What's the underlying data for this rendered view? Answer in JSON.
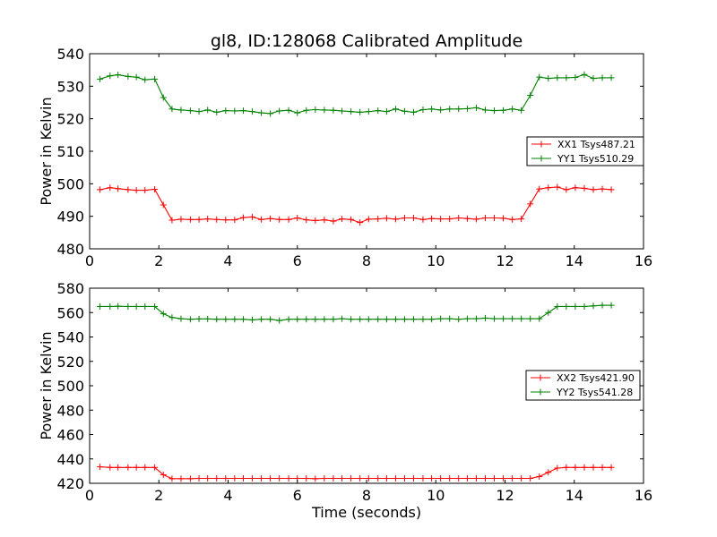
{
  "chart_data": [
    {
      "type": "line",
      "title": "gl8, ID:128068 Calibrated Amplitude",
      "xlabel": "",
      "ylabel": "Power in Kelvin",
      "xlim": [
        0,
        16
      ],
      "ylim": [
        480,
        540
      ],
      "xticks": [
        "0",
        "2",
        "4",
        "6",
        "8",
        "10",
        "12",
        "14",
        "16"
      ],
      "yticks": [
        "480",
        "490",
        "500",
        "510",
        "520",
        "530",
        "540"
      ],
      "grid": false,
      "legend_position": "center-right",
      "x": [
        0.3,
        0.59,
        0.82,
        1.11,
        1.35,
        1.6,
        1.88,
        2.13,
        2.38,
        2.64,
        2.91,
        3.16,
        3.41,
        3.67,
        3.93,
        4.19,
        4.44,
        4.7,
        4.96,
        5.22,
        5.48,
        5.75,
        6.0,
        6.26,
        6.52,
        6.78,
        7.04,
        7.29,
        7.55,
        7.81,
        8.06,
        8.33,
        8.58,
        8.84,
        9.1,
        9.36,
        9.63,
        9.88,
        10.14,
        10.4,
        10.66,
        10.91,
        11.17,
        11.43,
        11.69,
        11.95,
        12.21,
        12.47,
        12.73,
        12.99,
        13.25,
        13.51,
        13.77,
        14.03,
        14.29,
        14.55,
        14.81,
        15.07
      ],
      "series": [
        {
          "name": "XX1 Tsys487.21",
          "color": "#ff0000",
          "values": [
            498.2,
            498.8,
            498.5,
            498.2,
            498.0,
            498.0,
            498.3,
            493.5,
            488.8,
            489.1,
            489.0,
            489.0,
            489.2,
            489.0,
            488.9,
            488.9,
            489.6,
            489.8,
            489.0,
            489.3,
            489.0,
            489.0,
            489.5,
            488.9,
            488.7,
            488.9,
            488.5,
            489.2,
            489.0,
            488.1,
            489.1,
            489.2,
            489.4,
            489.1,
            489.5,
            489.5,
            489.0,
            489.3,
            489.2,
            489.2,
            489.5,
            489.3,
            489.1,
            489.5,
            489.5,
            489.4,
            489.0,
            489.2,
            493.8,
            498.4,
            498.8,
            499.0,
            498.2,
            498.8,
            498.6,
            498.2,
            498.4,
            498.2
          ]
        },
        {
          "name": "YY1 Tsys510.29",
          "color": "#008000",
          "values": [
            532.2,
            533.2,
            533.5,
            533.0,
            532.8,
            532.0,
            532.2,
            526.5,
            523.0,
            522.7,
            522.5,
            522.2,
            522.7,
            522.0,
            522.5,
            522.4,
            522.5,
            522.2,
            521.8,
            521.6,
            522.4,
            522.6,
            521.8,
            522.6,
            522.8,
            522.7,
            522.6,
            522.4,
            522.2,
            522.0,
            522.2,
            522.5,
            522.2,
            523.0,
            522.3,
            522.0,
            522.8,
            523.0,
            522.7,
            523.0,
            523.0,
            523.1,
            523.4,
            522.7,
            522.5,
            522.6,
            523.0,
            522.6,
            527.2,
            532.8,
            532.4,
            532.6,
            532.6,
            532.7,
            533.6,
            532.4,
            532.6,
            532.6
          ]
        }
      ]
    },
    {
      "type": "line",
      "title": "",
      "xlabel": "Time (seconds)",
      "ylabel": "Power in Kelvin",
      "xlim": [
        0,
        16
      ],
      "ylim": [
        420,
        580
      ],
      "xticks": [
        "0",
        "2",
        "4",
        "6",
        "8",
        "10",
        "12",
        "14",
        "16"
      ],
      "yticks": [
        "420",
        "440",
        "460",
        "480",
        "500",
        "520",
        "540",
        "560",
        "580"
      ],
      "grid": false,
      "legend_position": "center-right",
      "x": [
        0.3,
        0.59,
        0.82,
        1.11,
        1.35,
        1.6,
        1.88,
        2.13,
        2.38,
        2.64,
        2.91,
        3.16,
        3.41,
        3.67,
        3.93,
        4.19,
        4.44,
        4.7,
        4.96,
        5.22,
        5.48,
        5.75,
        6.0,
        6.26,
        6.52,
        6.78,
        7.04,
        7.29,
        7.55,
        7.81,
        8.06,
        8.33,
        8.58,
        8.84,
        9.1,
        9.36,
        9.63,
        9.88,
        10.14,
        10.4,
        10.66,
        10.91,
        11.17,
        11.43,
        11.69,
        11.95,
        12.21,
        12.47,
        12.73,
        12.99,
        13.25,
        13.51,
        13.77,
        14.03,
        14.29,
        14.55,
        14.81,
        15.07
      ],
      "series": [
        {
          "name": "XX2 Tsys421.90",
          "color": "#ff0000",
          "values": [
            433.5,
            433.0,
            433.0,
            433.0,
            433.0,
            433.0,
            433.0,
            427.0,
            423.8,
            423.8,
            423.8,
            424.0,
            424.0,
            424.0,
            424.0,
            424.0,
            424.0,
            424.0,
            424.0,
            424.0,
            424.0,
            424.0,
            424.0,
            424.0,
            423.8,
            424.0,
            424.0,
            424.0,
            424.0,
            424.0,
            424.0,
            424.0,
            424.0,
            424.0,
            424.0,
            424.0,
            424.0,
            424.0,
            424.0,
            424.0,
            424.0,
            424.0,
            424.0,
            424.0,
            424.0,
            424.0,
            424.0,
            424.0,
            424.0,
            425.5,
            429.0,
            432.5,
            433.0,
            433.0,
            433.0,
            433.0,
            433.0,
            433.0
          ]
        },
        {
          "name": "YY2 Tsys541.28",
          "color": "#008000",
          "values": [
            565.0,
            565.0,
            565.2,
            565.0,
            565.0,
            565.0,
            565.0,
            559.0,
            556.0,
            555.0,
            554.5,
            554.8,
            554.8,
            554.5,
            554.5,
            554.5,
            554.5,
            554.0,
            554.5,
            554.5,
            553.5,
            554.5,
            554.5,
            554.5,
            554.5,
            554.5,
            554.5,
            555.0,
            554.5,
            554.5,
            554.5,
            554.5,
            554.5,
            554.5,
            554.5,
            554.5,
            554.5,
            554.5,
            555.0,
            555.0,
            554.5,
            555.0,
            555.0,
            555.5,
            555.0,
            555.0,
            555.0,
            555.0,
            555.0,
            555.0,
            560.0,
            565.0,
            565.0,
            565.0,
            565.0,
            565.5,
            566.0,
            566.0
          ]
        }
      ]
    }
  ]
}
